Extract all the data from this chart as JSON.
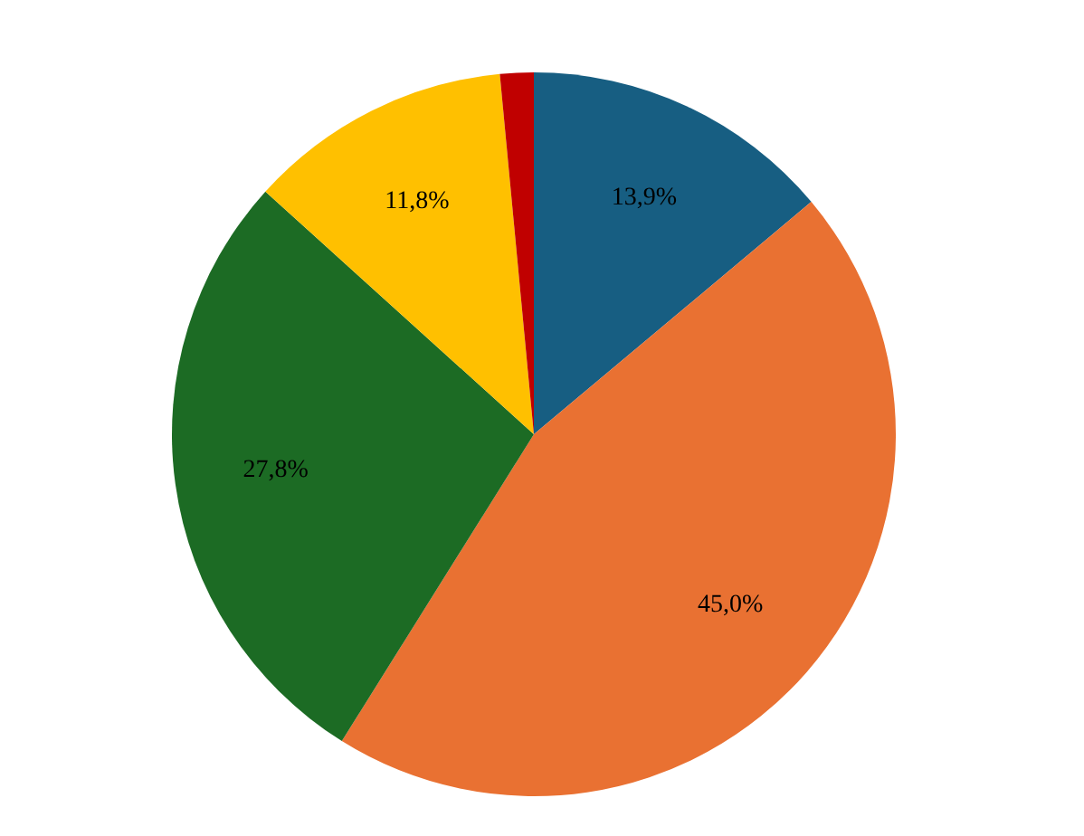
{
  "chart_data": {
    "type": "pie",
    "categories": [
      null,
      null,
      null,
      null,
      null
    ],
    "values": [
      13.9,
      45.0,
      27.8,
      11.8,
      1.5
    ],
    "colors": [
      "#175e82",
      "#e97132",
      "#1c6b24",
      "#ffc000",
      "#c00000"
    ],
    "value_labels": [
      "13,9%",
      "45,0%",
      "27,8%",
      "11,8%",
      null
    ]
  }
}
